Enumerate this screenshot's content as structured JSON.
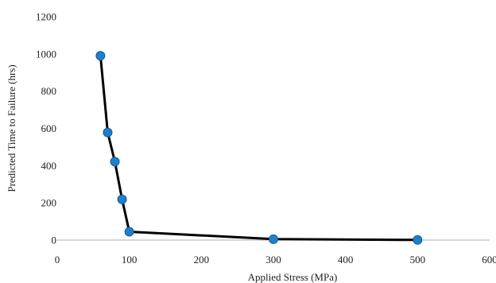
{
  "chart_data": {
    "type": "line",
    "title": "",
    "xlabel": "Applied Stress (MPa)",
    "ylabel": "Predicted Time to Failure (hrs)",
    "xlim": [
      0,
      600
    ],
    "ylim": [
      0,
      1200
    ],
    "x_ticks": [
      0,
      100,
      200,
      300,
      400,
      500,
      600
    ],
    "y_ticks": [
      0,
      200,
      400,
      600,
      800,
      1000,
      1200
    ],
    "grid": false,
    "legend": "none",
    "series": [
      {
        "x": [
          60,
          70,
          80,
          90,
          100,
          300,
          500
        ],
        "y": [
          990,
          578,
          421,
          219,
          45,
          5,
          1
        ],
        "line_color": "#000000",
        "marker_color": "#1f7fc9"
      }
    ]
  }
}
